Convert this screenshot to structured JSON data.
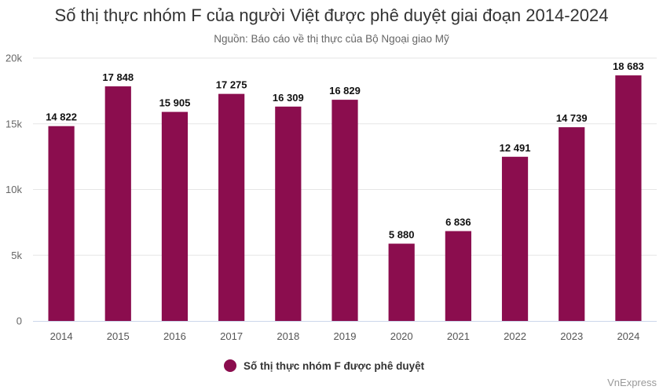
{
  "chart_data": {
    "type": "bar",
    "title": "Số thị thực nhóm F của người Việt được phê duyệt giai đoạn 2014-2024",
    "subtitle": "Nguồn: Báo cáo về thị thực của Bộ Ngoại giao Mỹ",
    "categories": [
      "2014",
      "2015",
      "2016",
      "2017",
      "2018",
      "2019",
      "2020",
      "2021",
      "2022",
      "2023",
      "2024"
    ],
    "series": [
      {
        "name": "Số thị thực nhóm F được phê duyệt",
        "values": [
          14822,
          17848,
          15905,
          17275,
          16309,
          16829,
          5880,
          6836,
          12491,
          14739,
          18683
        ],
        "labels": [
          "14 822",
          "17 848",
          "15 905",
          "17 275",
          "16 309",
          "16 829",
          "5 880",
          "6 836",
          "12 491",
          "14 739",
          "18 683"
        ],
        "color": "#8b0d4e"
      }
    ],
    "ylim": [
      0,
      20000
    ],
    "yticks": [
      0,
      5000,
      10000,
      15000,
      20000
    ],
    "ytick_labels": [
      "0",
      "5k",
      "10k",
      "15k",
      "20k"
    ],
    "grid": true,
    "legend_position": "bottom-center"
  },
  "credit": "VnExpress"
}
